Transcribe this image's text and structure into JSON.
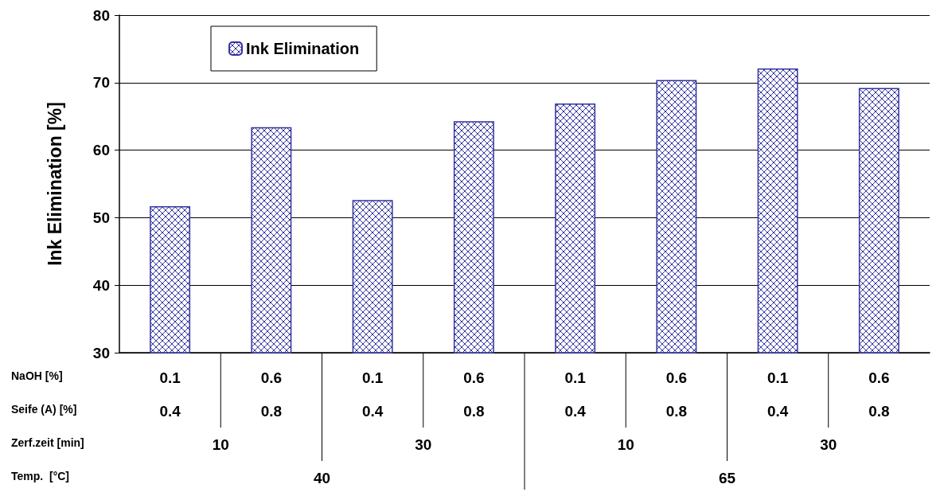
{
  "chart_data": {
    "type": "bar",
    "ylabel": "Ink Elimination [%]",
    "categories": [
      "0.1\n0.4",
      "0.6\n0.8",
      "0.1\n0.4",
      "0.6\n0.8",
      "0.1\n0.4",
      "0.6\n0.8",
      "0.1\n0.4",
      "0.6\n0.8"
    ],
    "series": [
      {
        "name": "Ink Elimination",
        "color": "#3333a0",
        "values": [
          51.7,
          63.4,
          52.6,
          64.3,
          66.9,
          70.4,
          72.1,
          69.2
        ]
      }
    ],
    "ylim": [
      30,
      80
    ],
    "yticks": [
      30,
      40,
      50,
      60,
      70,
      80
    ],
    "grid": "y",
    "legend": "top left",
    "annotations": [
      "NaOH [%]",
      "Seife (A) [%]",
      "Zerf.zeit [min]",
      "Temp.  [°C]",
      "10",
      "30",
      "10",
      "30",
      "40",
      "65"
    ]
  }
}
